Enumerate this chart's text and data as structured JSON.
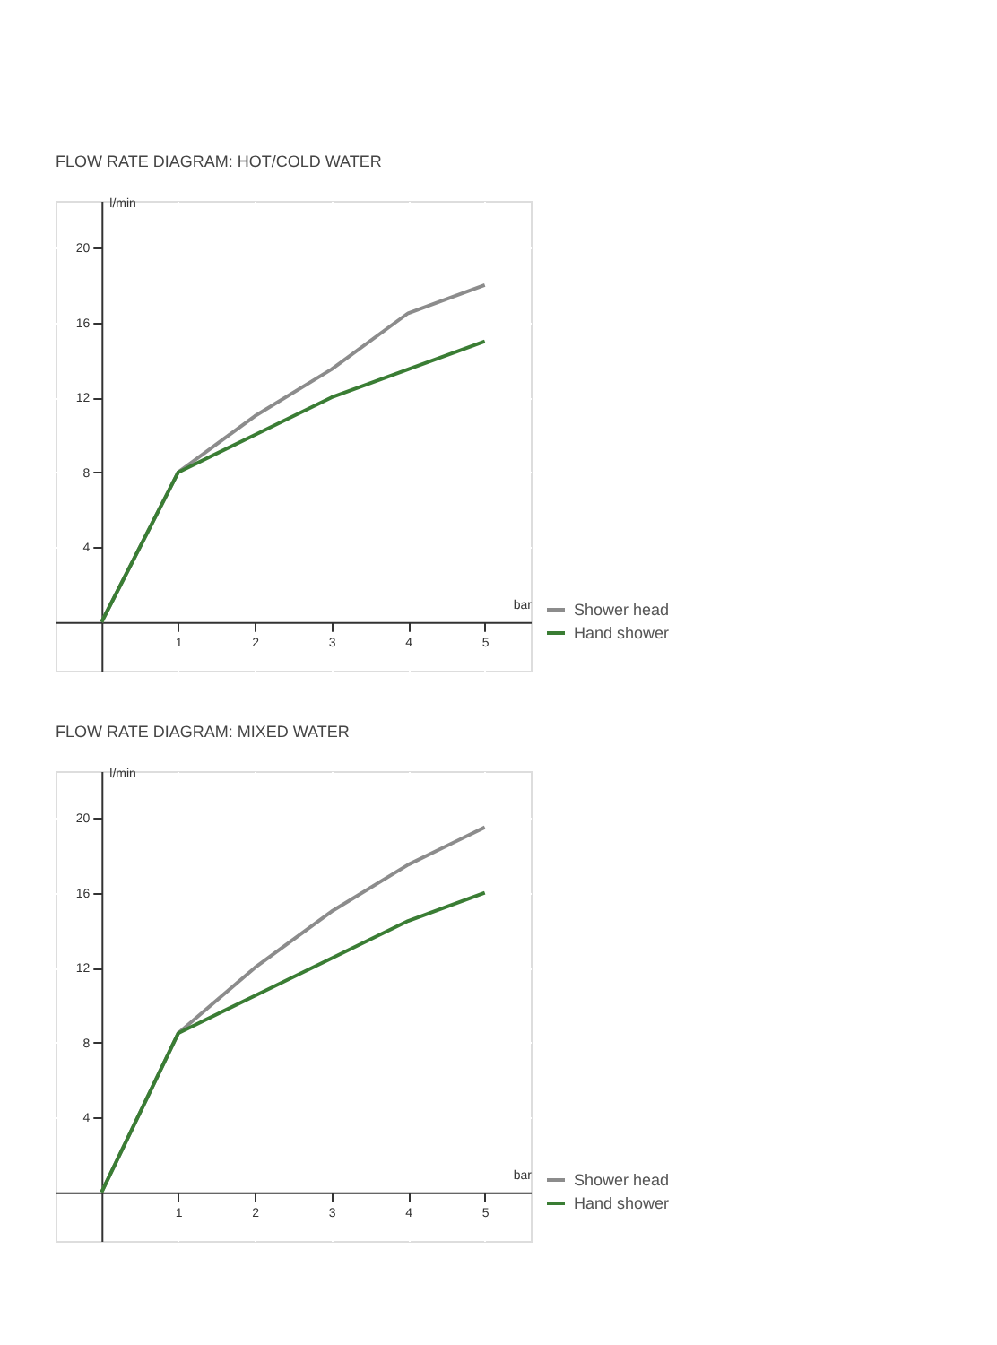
{
  "chart_data": [
    {
      "type": "line",
      "title": "FLOW RATE DIAGRAM: HOT/COLD WATER",
      "xlabel": "bar",
      "ylabel": "l/min",
      "x": [
        0,
        1,
        2,
        3,
        4,
        5
      ],
      "series": [
        {
          "name": "Shower head",
          "color": "#8c8c8c",
          "values": [
            0,
            8,
            11,
            13.5,
            16.5,
            18
          ]
        },
        {
          "name": "Hand shower",
          "color": "#3a7d34",
          "values": [
            0,
            8,
            10,
            12,
            13.5,
            15
          ]
        }
      ],
      "xlim": [
        -0.6,
        5.6
      ],
      "ylim": [
        -2.6,
        22.5
      ],
      "xticks": [
        1,
        2,
        3,
        4,
        5
      ],
      "yticks": [
        4,
        8,
        12,
        16,
        20
      ],
      "grid": true,
      "legend": "bottom right",
      "marker": "none",
      "line_style": "solid"
    },
    {
      "type": "line",
      "title": "FLOW RATE DIAGRAM: MIXED WATER",
      "xlabel": "bar",
      "ylabel": "l/min",
      "x": [
        0,
        1,
        2,
        3,
        4,
        5
      ],
      "series": [
        {
          "name": "Shower head",
          "color": "#8c8c8c",
          "values": [
            0,
            8.5,
            12,
            15,
            17.5,
            19.5
          ]
        },
        {
          "name": "Hand shower",
          "color": "#3a7d34",
          "values": [
            0,
            8.5,
            10.5,
            12.5,
            14.5,
            16
          ]
        }
      ],
      "xlim": [
        -0.6,
        5.6
      ],
      "ylim": [
        -2.6,
        22.5
      ],
      "xticks": [
        1,
        2,
        3,
        4,
        5
      ],
      "yticks": [
        4,
        8,
        12,
        16,
        20
      ],
      "grid": true,
      "legend": "bottom right",
      "marker": "none",
      "line_style": "solid"
    }
  ]
}
